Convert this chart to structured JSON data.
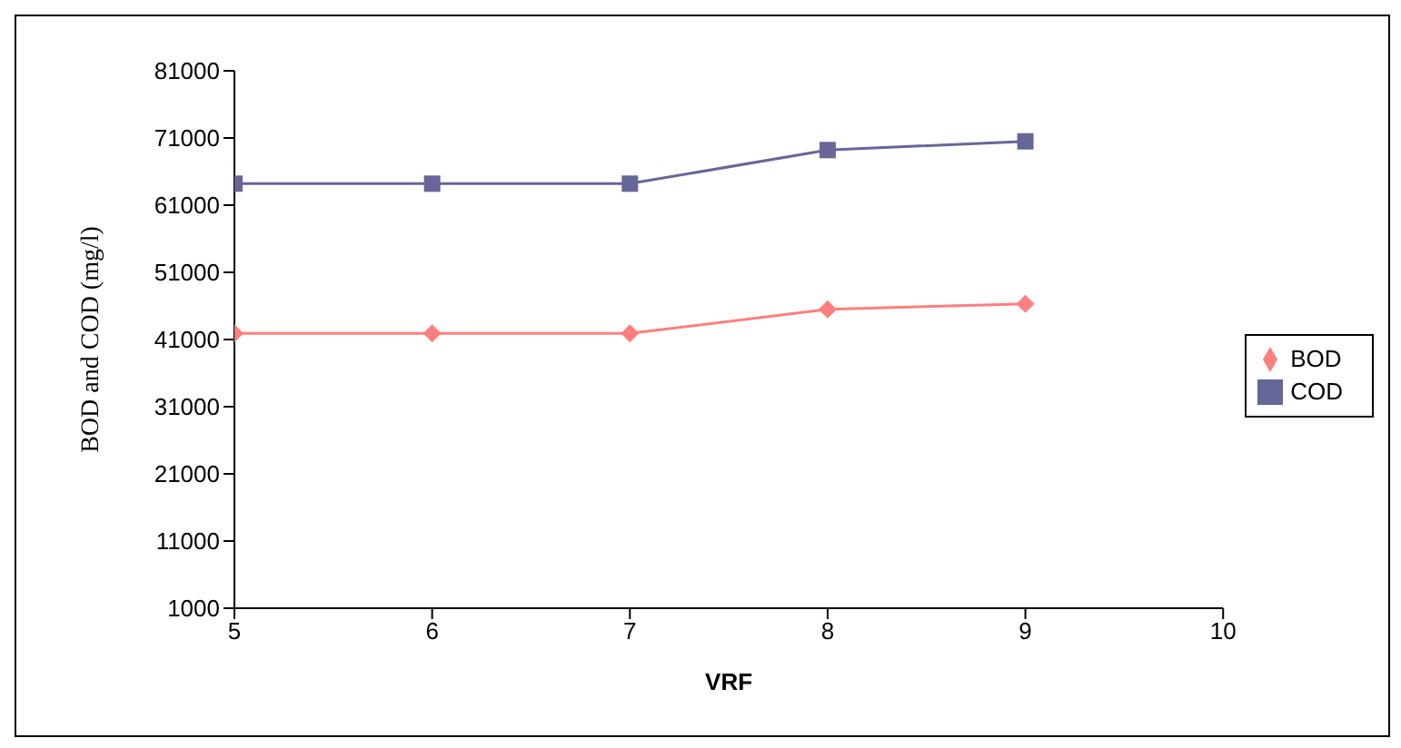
{
  "chart_data": {
    "type": "line",
    "xlabel": "VRF",
    "ylabel": "BOD and COD (mg/l)",
    "x": [
      5,
      6,
      7,
      8,
      9
    ],
    "series": [
      {
        "name": "BOD",
        "color": "#ff7f7f",
        "marker": "diamond",
        "values": [
          41900,
          41900,
          41900,
          45500,
          46300
        ]
      },
      {
        "name": "COD",
        "color": "#666699",
        "marker": "square",
        "values": [
          64200,
          64200,
          64200,
          69200,
          70500
        ]
      }
    ],
    "xlim": [
      5,
      10
    ],
    "xticks": [
      5,
      6,
      7,
      8,
      9,
      10
    ],
    "ylim": [
      1000,
      81000
    ],
    "yticks": [
      1000,
      11000,
      21000,
      31000,
      41000,
      51000,
      61000,
      71000,
      81000
    ],
    "grid": false,
    "legend": "right",
    "line_style": "solid"
  }
}
